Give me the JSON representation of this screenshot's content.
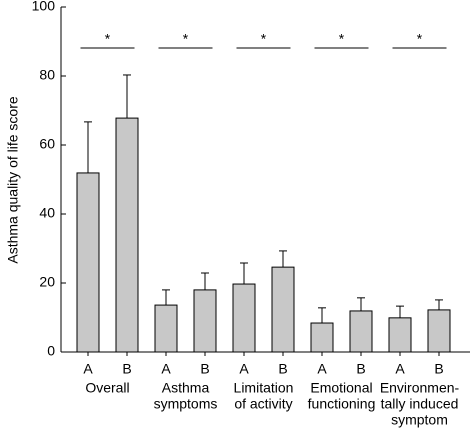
{
  "chart_data": {
    "type": "bar",
    "y_label": "Asthma quality of life score",
    "categories": [
      [
        "Overall"
      ],
      [
        "Asthma",
        "symptoms"
      ],
      [
        "Limitation",
        "of activity"
      ],
      [
        "Emotional",
        "functioning"
      ],
      [
        "Environmen-",
        "tally induced",
        "symptom"
      ]
    ],
    "series": [
      {
        "name": "A",
        "color": "#c8c8c8",
        "values": [
          51.9,
          13.6,
          19.7,
          8.4,
          9.9
        ],
        "errors": [
          14.8,
          4.4,
          6.1,
          4.4,
          3.4
        ]
      },
      {
        "name": "B",
        "color": "#c8c8c8",
        "values": [
          67.8,
          18.0,
          24.6,
          11.9,
          12.2
        ],
        "errors": [
          12.5,
          4.9,
          4.7,
          3.8,
          2.9
        ]
      }
    ],
    "annotations": [
      "*",
      "*",
      "*",
      "*",
      "*"
    ],
    "ylim": [
      0,
      100
    ],
    "yticks": [
      0,
      20,
      40,
      60,
      80,
      100
    ],
    "grid": false
  }
}
